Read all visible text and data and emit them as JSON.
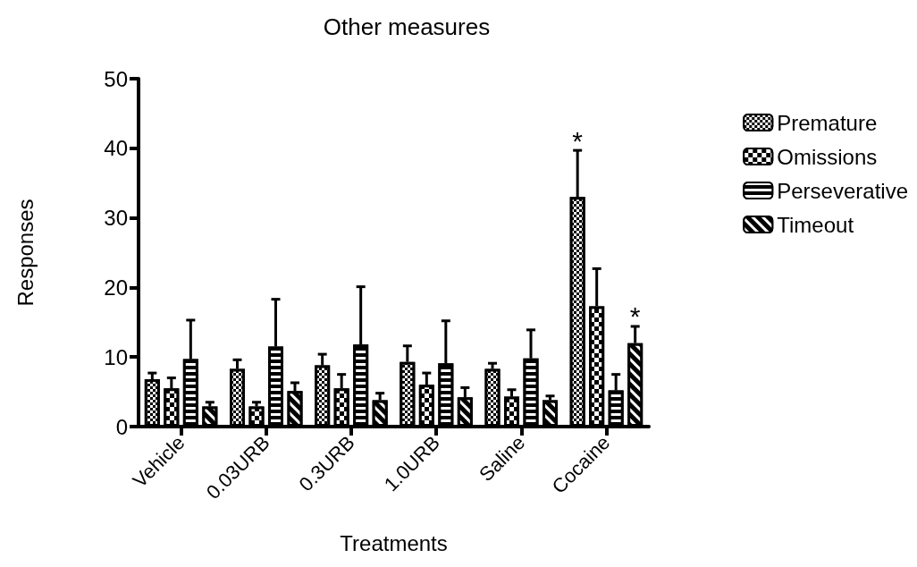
{
  "chart_data": {
    "type": "bar",
    "title": "Other measures",
    "xlabel": "Treatments",
    "ylabel": "Responses",
    "categories": [
      "Vehicle",
      "0.03URB",
      "0.3URB",
      "1.0URB",
      "Saline",
      "Cocaine"
    ],
    "series": [
      {
        "name": "Premature",
        "color": "#000000",
        "values": [
          6.8,
          8.3,
          8.8,
          9.3,
          8.3,
          33.0
        ],
        "value_labels": [
          null,
          null,
          null,
          null,
          null,
          "*"
        ],
        "errors": [
          [
            6.8,
            7.7
          ],
          [
            8.3,
            9.6
          ],
          [
            8.8,
            10.4
          ],
          [
            9.3,
            11.6
          ],
          [
            8.3,
            9.1
          ],
          [
            33.0,
            39.7
          ]
        ]
      },
      {
        "name": "Omissions",
        "color": "#000000",
        "values": [
          5.5,
          2.9,
          5.5,
          6.0,
          4.3,
          17.3
        ],
        "errors": [
          [
            5.5,
            7.0
          ],
          [
            2.9,
            3.5
          ],
          [
            5.5,
            7.5
          ],
          [
            6.0,
            7.7
          ],
          [
            4.3,
            5.3
          ],
          [
            17.3,
            22.7
          ]
        ]
      },
      {
        "name": "Perseverative",
        "color": "#000000",
        "values": [
          9.7,
          11.5,
          11.8,
          9.1,
          9.8,
          5.2
        ],
        "errors": [
          [
            9.7,
            15.3
          ],
          [
            11.5,
            18.3
          ],
          [
            11.8,
            20.1
          ],
          [
            9.1,
            15.2
          ],
          [
            9.8,
            13.9
          ],
          [
            5.2,
            7.5
          ]
        ]
      },
      {
        "name": "Timeout",
        "color": "#000000",
        "values": [
          2.9,
          5.1,
          3.8,
          4.2,
          3.8,
          12.0
        ],
        "value_labels": [
          null,
          null,
          null,
          null,
          null,
          "*"
        ],
        "errors": [
          [
            2.9,
            3.5
          ],
          [
            5.1,
            6.3
          ],
          [
            3.8,
            4.8
          ],
          [
            4.2,
            5.6
          ],
          [
            3.8,
            4.4
          ],
          [
            12.0,
            14.4
          ]
        ]
      }
    ],
    "ylim": [
      0,
      50
    ],
    "yticks": [
      0,
      10,
      20,
      30,
      40,
      50
    ],
    "grid": false,
    "legend": "top right"
  }
}
